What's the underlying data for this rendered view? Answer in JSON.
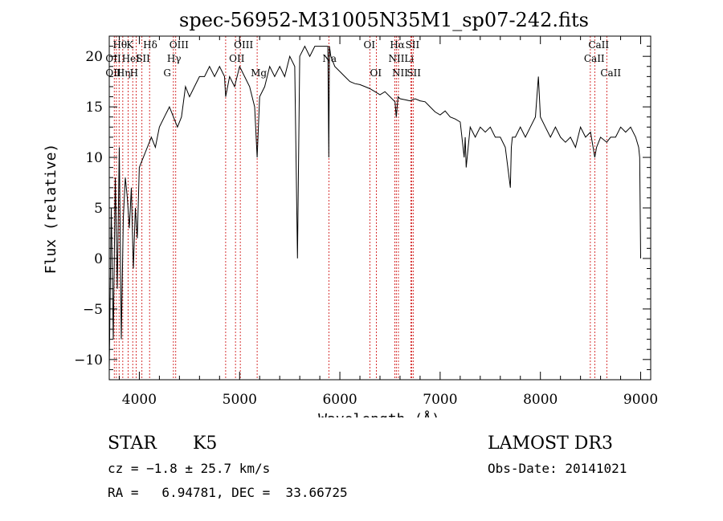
{
  "chart_data": {
    "type": "line",
    "title": "spec-56952-M31005N35M1_sp07-242.fits",
    "xlabel": "Wavelength (Å)",
    "ylabel": "Flux (relative)",
    "xlim": [
      3700,
      9100
    ],
    "ylim": [
      -12,
      22
    ],
    "xticks": [
      4000,
      5000,
      6000,
      7000,
      8000,
      9000
    ],
    "yticks": [
      -10,
      -5,
      0,
      5,
      10,
      15,
      20
    ],
    "grid": false,
    "series": [
      {
        "name": "flux",
        "x": [
          3700,
          3720,
          3740,
          3760,
          3780,
          3800,
          3820,
          3840,
          3860,
          3880,
          3900,
          3920,
          3940,
          3960,
          3980,
          4000,
          4040,
          4080,
          4120,
          4160,
          4200,
          4250,
          4300,
          4340,
          4380,
          4420,
          4460,
          4500,
          4550,
          4600,
          4650,
          4700,
          4750,
          4800,
          4850,
          4861,
          4900,
          4950,
          5000,
          5050,
          5100,
          5150,
          5175,
          5200,
          5250,
          5300,
          5350,
          5400,
          5450,
          5500,
          5550,
          5577,
          5600,
          5650,
          5700,
          5750,
          5800,
          5850,
          5880,
          5890,
          5896,
          5910,
          5950,
          6000,
          6050,
          6100,
          6150,
          6200,
          6250,
          6300,
          6350,
          6400,
          6450,
          6500,
          6550,
          6563,
          6580,
          6600,
          6650,
          6700,
          6750,
          6800,
          6850,
          6900,
          6950,
          7000,
          7050,
          7100,
          7150,
          7200,
          7240,
          7250,
          7260,
          7300,
          7350,
          7400,
          7450,
          7500,
          7550,
          7600,
          7650,
          7700,
          7710,
          7720,
          7750,
          7800,
          7850,
          7900,
          7950,
          7980,
          8000,
          8050,
          8100,
          8150,
          8200,
          8250,
          8300,
          8350,
          8400,
          8450,
          8500,
          8542,
          8560,
          8600,
          8662,
          8700,
          8750,
          8800,
          8850,
          8900,
          8950,
          8980,
          8990,
          9000
        ],
        "y": [
          -11,
          5,
          -8,
          8,
          -3,
          11,
          -8,
          4,
          8,
          6,
          3,
          7,
          -1,
          5,
          2,
          9,
          10,
          11,
          12,
          11,
          13,
          14,
          15,
          14,
          13,
          14,
          17,
          16,
          17,
          18,
          18,
          19,
          18,
          19,
          18,
          16,
          18,
          17,
          19,
          18,
          17,
          15,
          10,
          16,
          17,
          19,
          18,
          19,
          18,
          20,
          19,
          0,
          20,
          21,
          20,
          21,
          21,
          21,
          21,
          10,
          21,
          20,
          19,
          18.5,
          18,
          17.5,
          17.3,
          17.2,
          17,
          16.8,
          16.5,
          16.2,
          16.5,
          16,
          15.5,
          14,
          16,
          15.8,
          15.7,
          15.6,
          15.8,
          15.6,
          15.5,
          15,
          14.5,
          14.2,
          14.6,
          14,
          13.8,
          13.5,
          10,
          12,
          9,
          13,
          12,
          13,
          12.5,
          13,
          12,
          12,
          11,
          7,
          11,
          12,
          12,
          13,
          12,
          13,
          14,
          18,
          14,
          13,
          12,
          13,
          12,
          11.5,
          12,
          11,
          13,
          12,
          12.5,
          10,
          11,
          12,
          11.5,
          12,
          12,
          13,
          12.5,
          13,
          12,
          11,
          10,
          0
        ]
      }
    ],
    "annotations": [
      "Hθ",
      "K",
      "Hδ",
      "OIII",
      "OIII",
      "OI",
      "Hα",
      "SII",
      "OII",
      "HeI",
      "SII",
      "Hγ",
      "OII",
      "Na",
      "NII",
      "Li",
      "OII",
      "Hη",
      "H",
      "G",
      "Mg",
      "OI",
      "NII",
      "SII",
      "CaII",
      "CaII",
      "CaII"
    ]
  },
  "info": {
    "object_type": "STAR",
    "subclass": "K5",
    "survey": "LAMOST DR3",
    "cz": "cz = −1.8 ± 25.7 km/s",
    "obs_date": "Obs-Date: 20141021",
    "coords": "RA =   6.94781, DEC =  33.66725"
  },
  "colors": {
    "line": "#000000",
    "marker_lines": "#cc0000",
    "background": "#ffffff"
  }
}
